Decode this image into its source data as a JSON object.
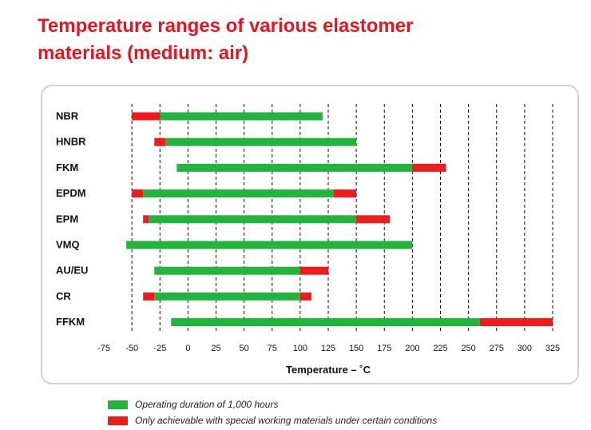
{
  "title_lines": [
    "Temperature ranges of various elastomer",
    "materials (medium: air)"
  ],
  "colors": {
    "title": "#e8141e",
    "operating": "#22b43c",
    "special": "#ee1c1c",
    "grid": "#111111"
  },
  "legend": [
    {
      "label": "Operating duration of 1,000 hours",
      "color": "#22b43c"
    },
    {
      "label": "Only achievable with special working materials under certain conditions",
      "color": "#ee1c1c"
    }
  ],
  "chart_data": {
    "type": "bar",
    "orientation": "horizontal-range",
    "xlabel": "Temperature – ˚C",
    "xlim": [
      -75,
      325
    ],
    "xticks": [
      -75,
      -50,
      -25,
      0,
      25,
      50,
      75,
      100,
      125,
      150,
      175,
      200,
      225,
      250,
      275,
      300,
      325
    ],
    "grid": "dashed vertical",
    "categories": [
      "NBR",
      "HNBR",
      "FKM",
      "EPDM",
      "EPM",
      "VMQ",
      "AU/EU",
      "CR",
      "FFKM"
    ],
    "series": [
      {
        "name": "Operating duration of 1,000 hours",
        "ranges": [
          [
            -25,
            120
          ],
          [
            -20,
            150
          ],
          [
            -10,
            200
          ],
          [
            -40,
            130
          ],
          [
            -35,
            150
          ],
          [
            -55,
            200
          ],
          [
            -30,
            100
          ],
          [
            -30,
            100
          ],
          [
            -15,
            260
          ]
        ]
      },
      {
        "name": "Only achievable with special working materials under certain conditions",
        "ranges": [
          [
            [
              -50,
              -25
            ]
          ],
          [
            [
              -30,
              -20
            ]
          ],
          [
            [
              200,
              230
            ]
          ],
          [
            [
              -50,
              -40
            ],
            [
              130,
              150
            ]
          ],
          [
            [
              -40,
              -35
            ],
            [
              150,
              180
            ]
          ],
          [],
          [
            [
              100,
              125
            ]
          ],
          [
            [
              -40,
              -30
            ],
            [
              100,
              110
            ]
          ],
          [
            [
              260,
              325
            ]
          ]
        ]
      }
    ]
  }
}
